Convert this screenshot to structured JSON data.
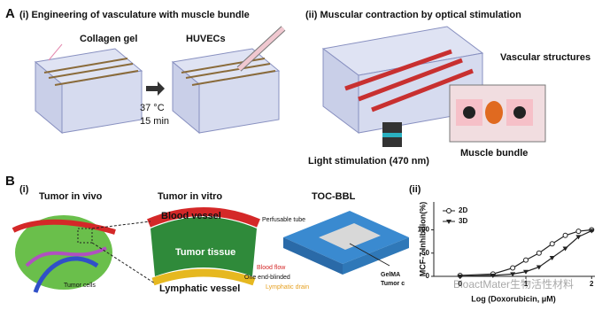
{
  "panel_a": {
    "label": "A",
    "left": {
      "title": "(i) Engineering of vasculature with muscle bundle",
      "collagen": "Collagen gel",
      "huvecs": "HUVECs",
      "temp": "37 °C",
      "time": "15 min"
    },
    "right": {
      "title": "(ii) Muscular contraction by optical stimulation",
      "vascular": "Vascular structures",
      "muscle": "Muscle bundle",
      "light": "Light stimulation (470 nm)"
    }
  },
  "panel_b": {
    "label": "B",
    "sub_i": "(i)",
    "sub_ii": "(ii)",
    "in_vivo": "Tumor in vivo",
    "in_vitro": "Tumor in vitro",
    "device": "TOC-BBL",
    "blood_vessel": "Blood vessel",
    "tumor_tissue": "Tumor tissue",
    "lymphatic_vessel": "Lymphatic vessel",
    "perfusable": "Perfusable tube",
    "blood_flow": "Blood flow",
    "blinded": "One end-blinded",
    "drain": "Lymphatic drain",
    "tumor_cells": "Tumor cells",
    "gelma": "GelMA",
    "tumor_c": "Tumor c"
  },
  "watermark": "BioactMater生物活性材料",
  "chart_data": {
    "type": "line",
    "x_label": "Log (Doxorubicin, μM)",
    "y_label": "MCF-7 Inhibition(%)",
    "x": [
      0,
      0.5,
      0.8,
      1.0,
      1.2,
      1.4,
      1.6,
      1.8,
      2.0
    ],
    "series": [
      {
        "name": "2D",
        "color": "#222222",
        "marker": "circle",
        "values": [
          2,
          5,
          18,
          35,
          50,
          70,
          88,
          97,
          100
        ]
      },
      {
        "name": "3D",
        "color": "#222222",
        "marker": "triangle",
        "values": [
          0,
          2,
          5,
          10,
          20,
          40,
          60,
          85,
          98
        ]
      }
    ],
    "xlim": [
      -0.4,
      2.05
    ],
    "xticks": [
      0,
      1,
      2
    ],
    "ylim": [
      0,
      160
    ],
    "yticks": [
      0,
      50,
      100
    ]
  }
}
